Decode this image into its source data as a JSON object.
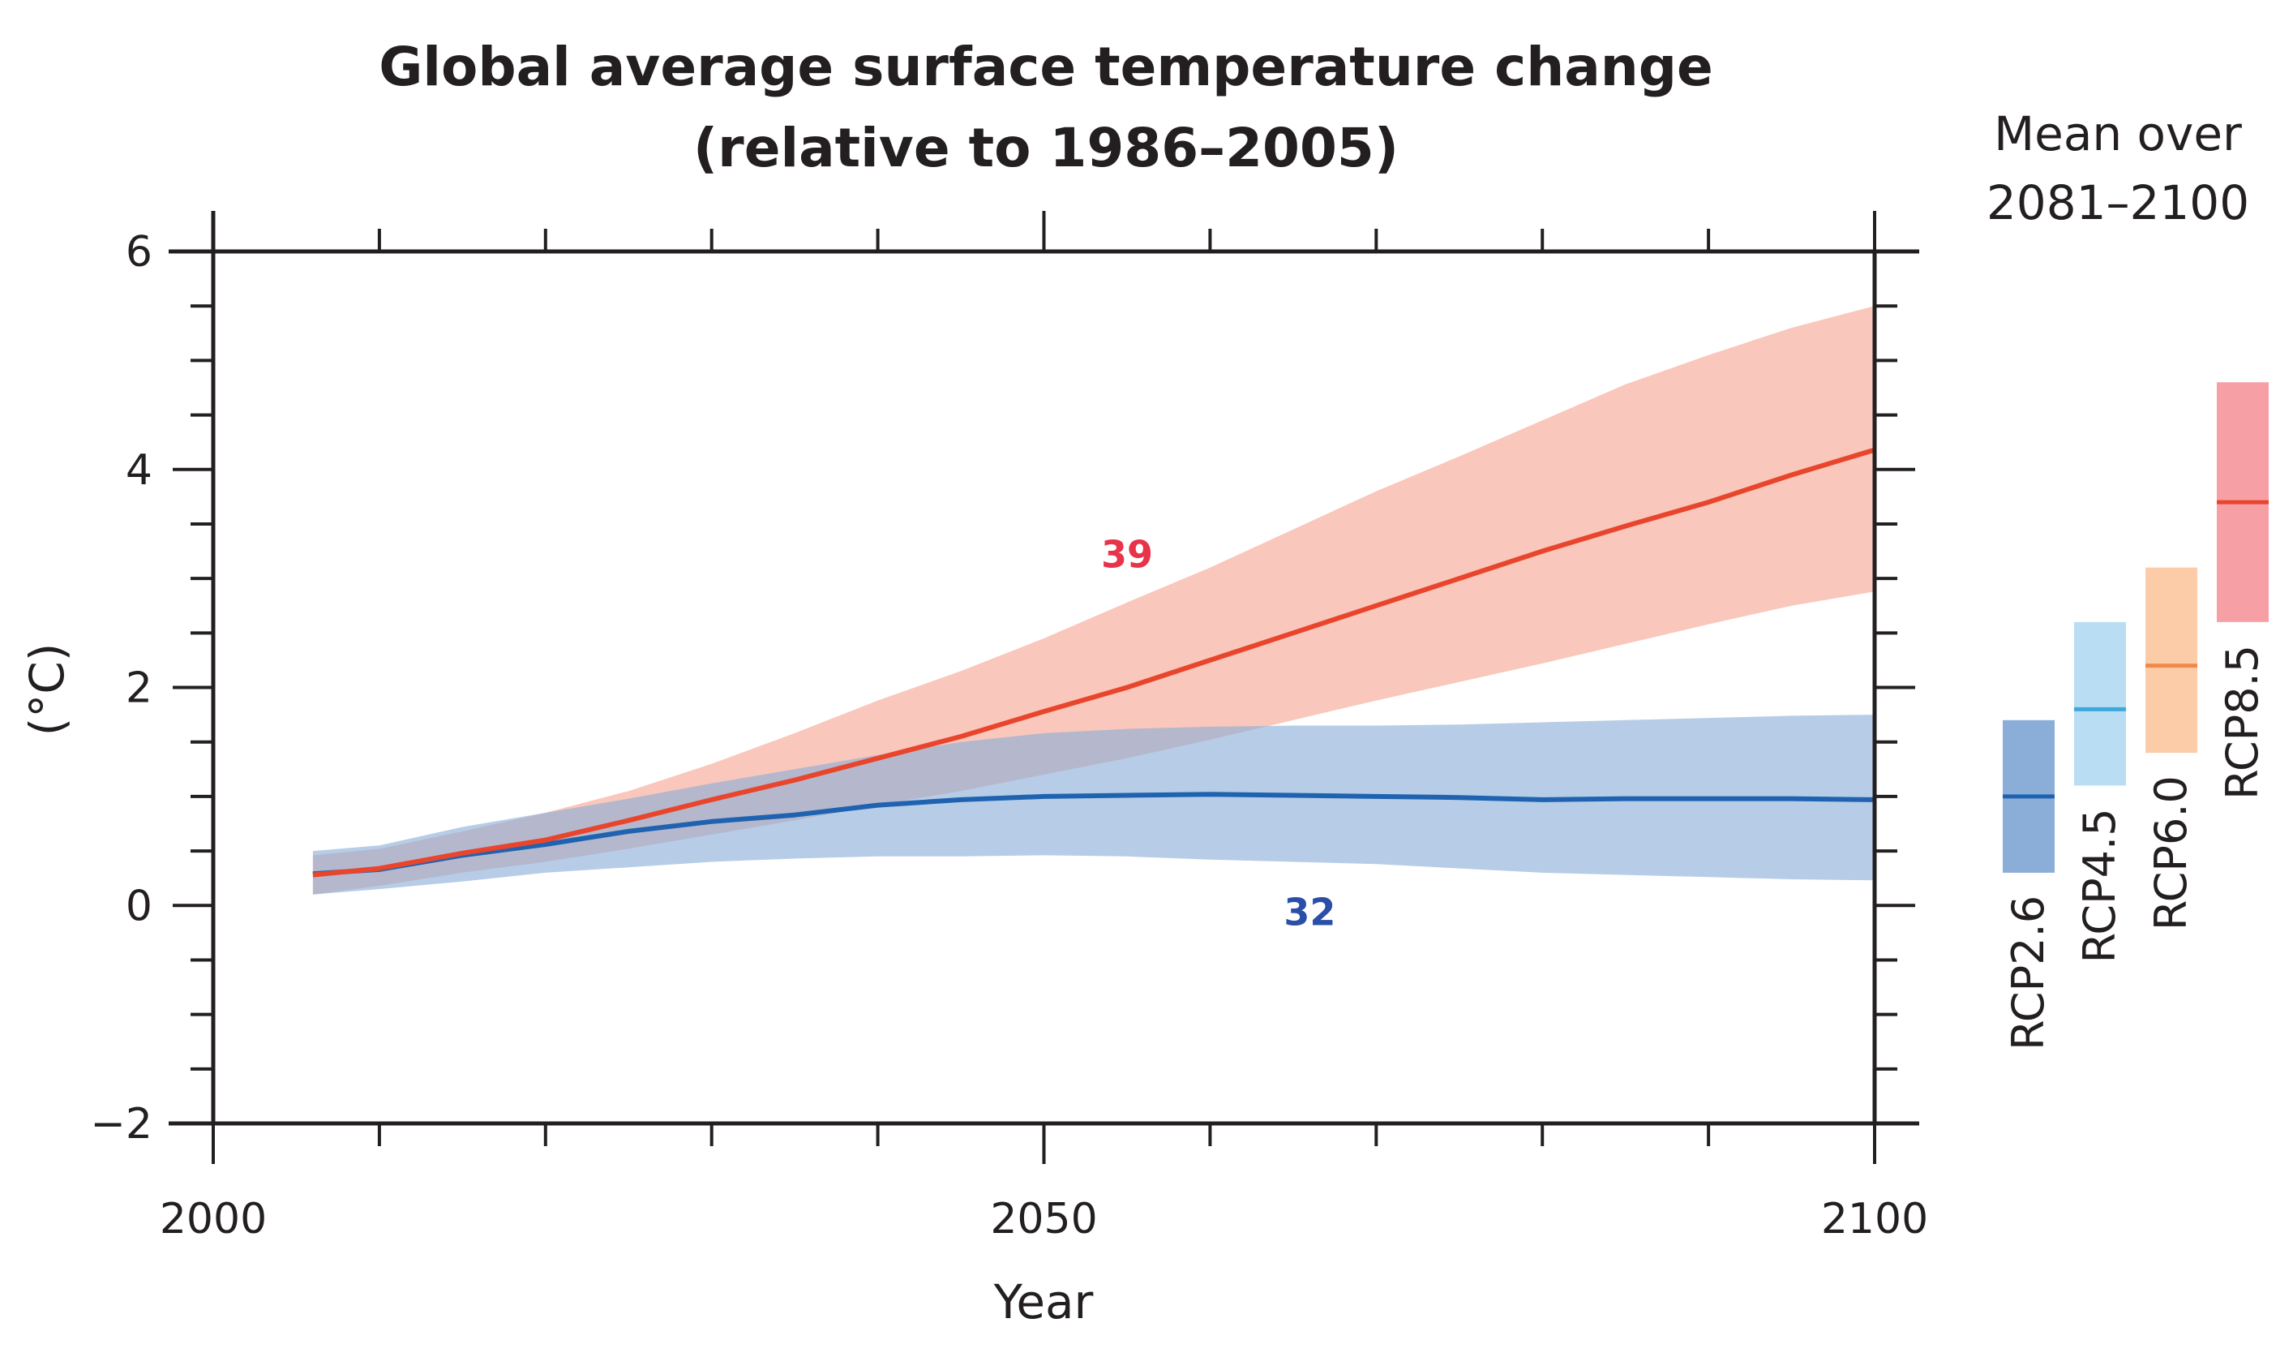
{
  "chart_data": {
    "type": "line",
    "title": "Global average surface temperature change",
    "subtitle": "(relative to 1986–2005)",
    "xlabel": "Year",
    "ylabel": "(°C)",
    "xlim": [
      2000,
      2100
    ],
    "ylim": [
      -2,
      6
    ],
    "x_ticks": [
      2000,
      2050,
      2100
    ],
    "y_ticks": [
      -2,
      0,
      2,
      4,
      6
    ],
    "series": [
      {
        "name": "RCP2.6",
        "color": "#1f63b0",
        "band_color": "#8aaed8",
        "model_count": "32",
        "x": [
          2006,
          2010,
          2015,
          2020,
          2025,
          2030,
          2035,
          2040,
          2045,
          2050,
          2055,
          2060,
          2065,
          2070,
          2075,
          2080,
          2085,
          2090,
          2095,
          2100
        ],
        "values": [
          0.29,
          0.33,
          0.46,
          0.56,
          0.68,
          0.77,
          0.83,
          0.92,
          0.97,
          1.0,
          1.01,
          1.02,
          1.01,
          1.0,
          0.99,
          0.97,
          0.98,
          0.98,
          0.98,
          0.97
        ],
        "lower": [
          0.1,
          0.15,
          0.22,
          0.3,
          0.35,
          0.4,
          0.43,
          0.45,
          0.45,
          0.46,
          0.45,
          0.42,
          0.4,
          0.38,
          0.34,
          0.3,
          0.28,
          0.26,
          0.24,
          0.23
        ],
        "upper": [
          0.5,
          0.55,
          0.72,
          0.85,
          0.98,
          1.12,
          1.25,
          1.38,
          1.5,
          1.58,
          1.62,
          1.64,
          1.65,
          1.65,
          1.66,
          1.68,
          1.7,
          1.72,
          1.74,
          1.75
        ]
      },
      {
        "name": "RCP8.5",
        "color": "#e8452c",
        "band_color": "#f6a592",
        "model_count": "39",
        "x": [
          2006,
          2010,
          2015,
          2020,
          2025,
          2030,
          2035,
          2040,
          2045,
          2050,
          2055,
          2060,
          2065,
          2070,
          2075,
          2080,
          2085,
          2090,
          2095,
          2100
        ],
        "values": [
          0.28,
          0.34,
          0.48,
          0.6,
          0.78,
          0.97,
          1.15,
          1.35,
          1.55,
          1.78,
          2.0,
          2.25,
          2.5,
          2.75,
          3.0,
          3.25,
          3.48,
          3.7,
          3.95,
          4.18
        ],
        "lower": [
          0.1,
          0.18,
          0.3,
          0.4,
          0.52,
          0.65,
          0.78,
          0.92,
          1.05,
          1.2,
          1.35,
          1.52,
          1.7,
          1.88,
          2.05,
          2.22,
          2.4,
          2.58,
          2.75,
          2.88
        ],
        "upper": [
          0.46,
          0.52,
          0.68,
          0.85,
          1.05,
          1.3,
          1.58,
          1.88,
          2.15,
          2.45,
          2.78,
          3.1,
          3.45,
          3.8,
          4.12,
          4.45,
          4.78,
          5.05,
          5.3,
          5.5
        ]
      }
    ],
    "mean_panel": {
      "title_line1": "Mean over",
      "title_line2": "2081–2100",
      "bars": [
        {
          "name": "RCP2.6",
          "low": 0.3,
          "mean": 1.0,
          "high": 1.7,
          "color": "#1f63b0",
          "fill": "#8aaed8"
        },
        {
          "name": "RCP4.5",
          "low": 1.1,
          "mean": 1.8,
          "high": 2.6,
          "color": "#3ea8dd",
          "fill": "#b9def3"
        },
        {
          "name": "RCP6.0",
          "low": 1.4,
          "mean": 2.2,
          "high": 3.1,
          "color": "#f08a4b",
          "fill": "#fccba8"
        },
        {
          "name": "RCP8.5",
          "low": 2.6,
          "mean": 3.7,
          "high": 4.8,
          "color": "#e8452c",
          "fill": "#f6a0a6"
        }
      ]
    }
  }
}
